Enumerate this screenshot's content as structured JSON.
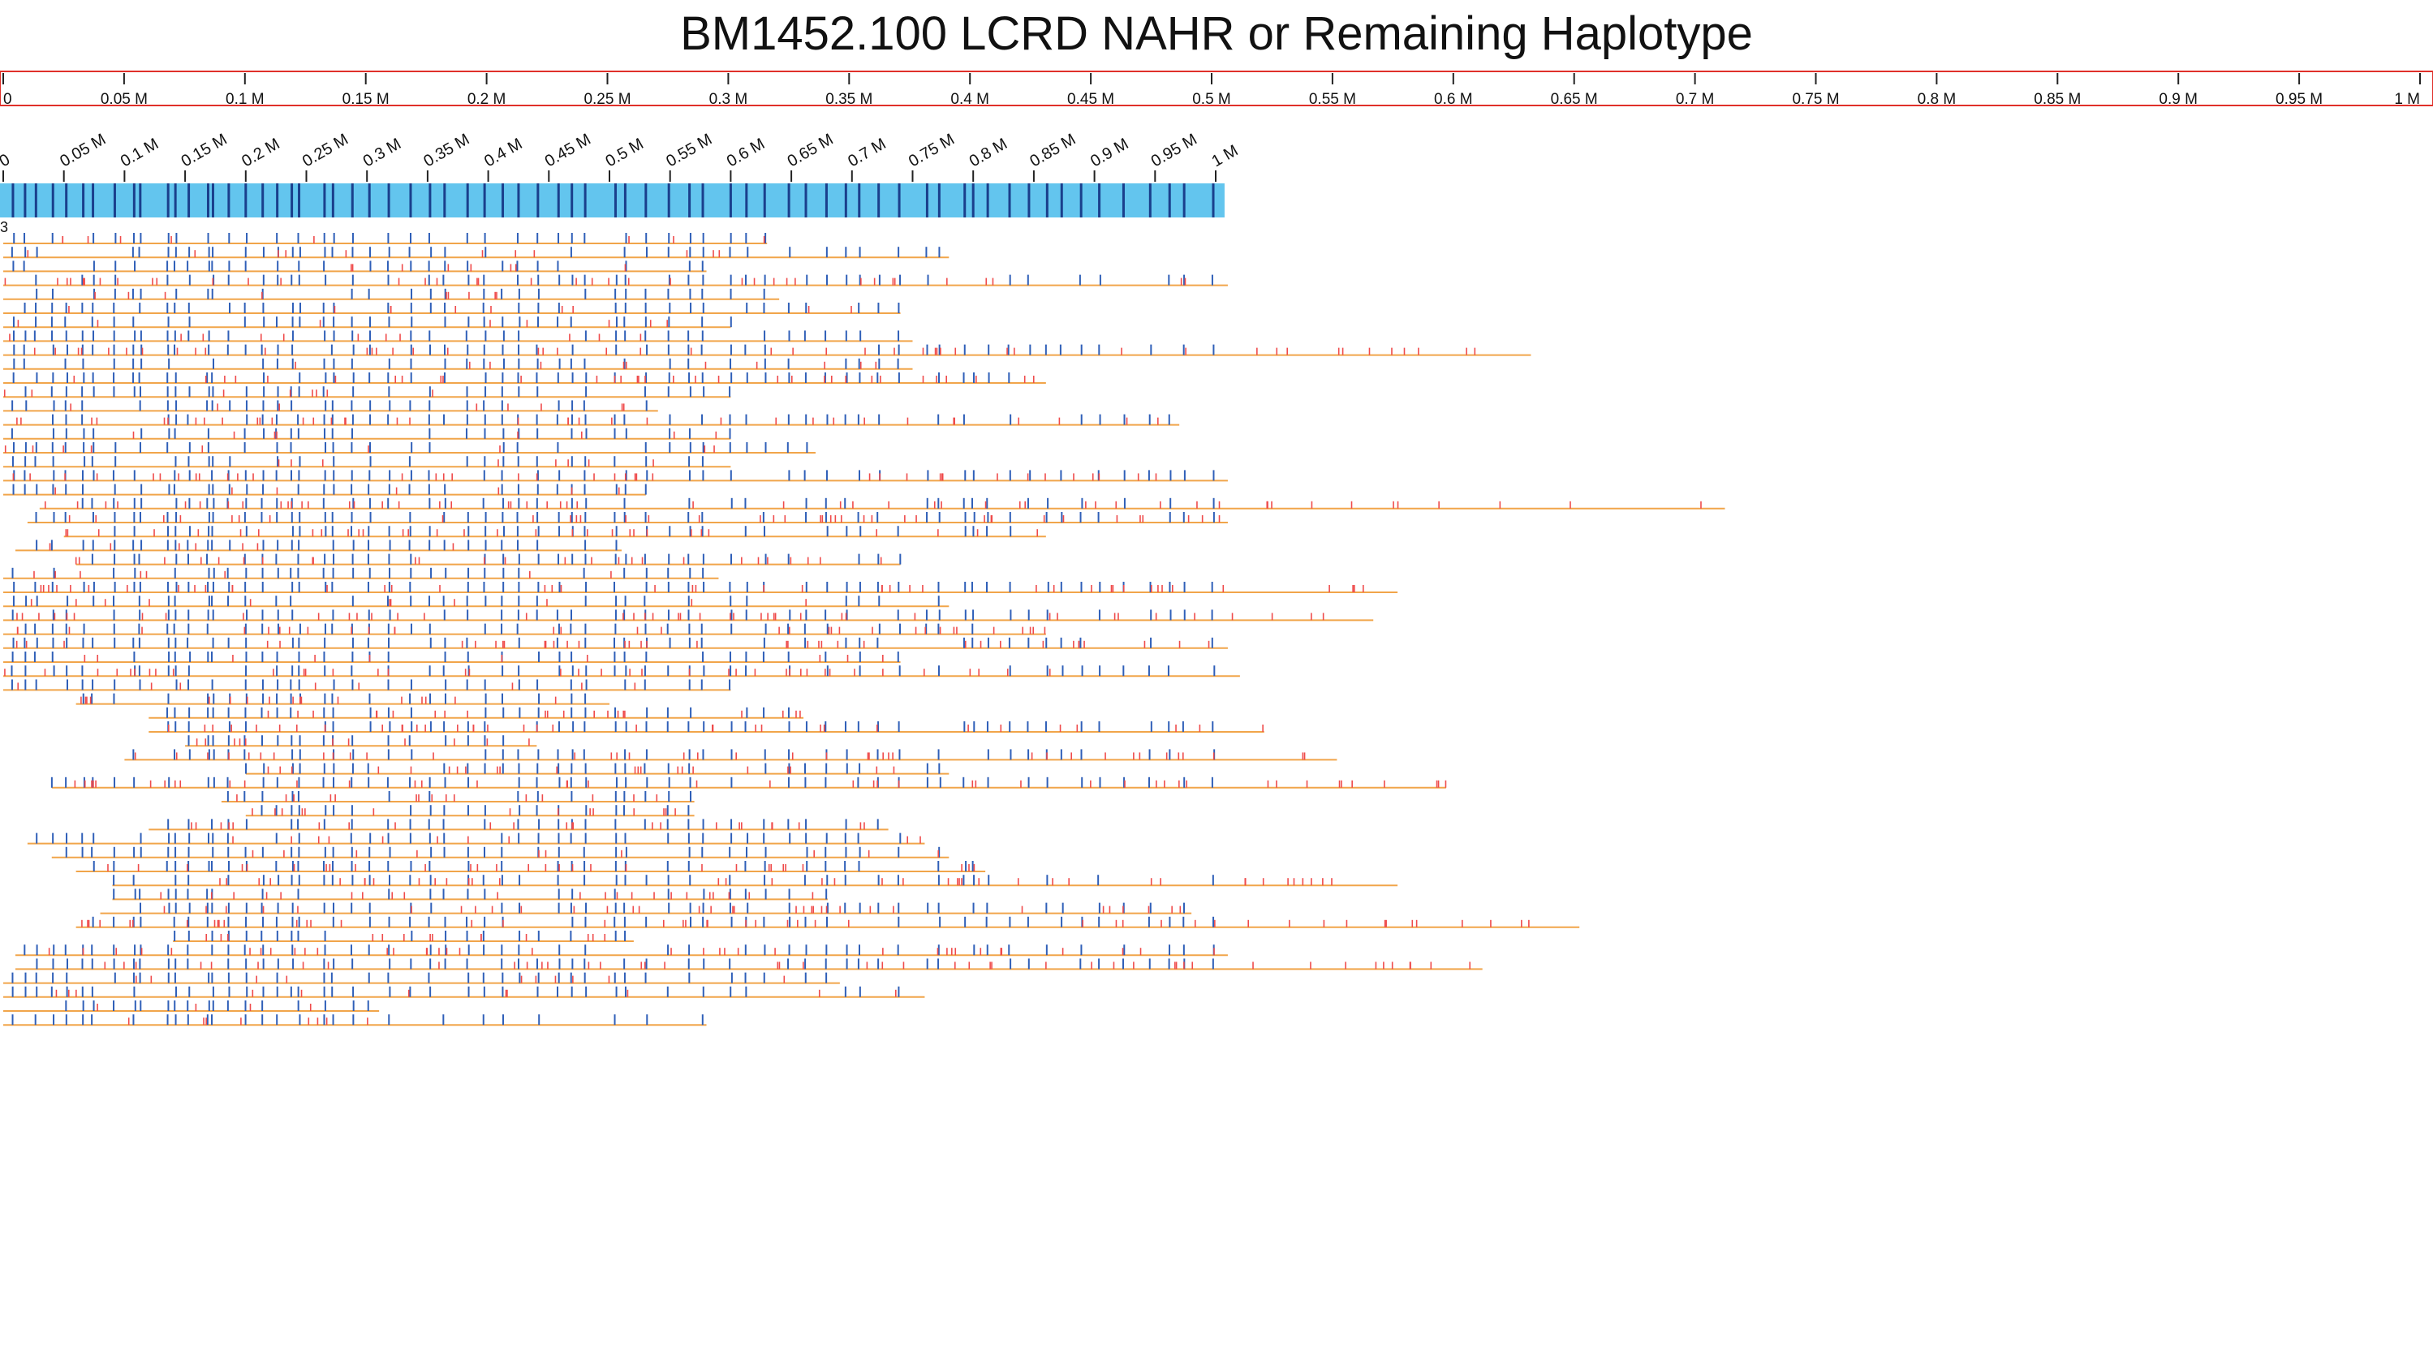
{
  "title": "BM1452.100 LCRD NAHR or Remaining Haplotype",
  "colors": {
    "ruler_border": "#e0302a",
    "contig_fill": "#63c5ee",
    "contig_band": "#1a3f8c",
    "read_line": "#f1a54a",
    "label_match": "#2f5fb8",
    "label_nomatch": "#ef4b4b"
  },
  "reference_ruler": {
    "ticks": [
      "0",
      "0.05 M",
      "0.1 M",
      "0.15 M",
      "0.2 M",
      "0.25 M",
      "0.3 M",
      "0.35 M",
      "0.4 M",
      "0.45 M",
      "0.5 M",
      "0.55 M",
      "0.6 M",
      "0.65 M",
      "0.7 M",
      "0.75 M",
      "0.8 M",
      "0.85 M",
      "0.9 M",
      "0.95 M",
      "1 M"
    ]
  },
  "contig": {
    "length_mb": 1.01,
    "ticks": [
      "0",
      "0.05 M",
      "0.1 M",
      "0.15 M",
      "0.2 M",
      "0.25 M",
      "0.3 M",
      "0.35 M",
      "0.4 M",
      "0.45 M",
      "0.5 M",
      "0.55 M",
      "0.6 M",
      "0.65 M",
      "0.7 M",
      "0.75 M",
      "0.8 M",
      "0.85 M",
      "0.9 M",
      "0.95 M",
      "1 M"
    ],
    "label_sites_mb": [
      0.008,
      0.018,
      0.027,
      0.041,
      0.052,
      0.066,
      0.074,
      0.092,
      0.108,
      0.113,
      0.136,
      0.142,
      0.153,
      0.169,
      0.173,
      0.186,
      0.2,
      0.214,
      0.226,
      0.238,
      0.244,
      0.265,
      0.272,
      0.288,
      0.302,
      0.318,
      0.336,
      0.352,
      0.364,
      0.383,
      0.397,
      0.412,
      0.425,
      0.441,
      0.458,
      0.469,
      0.48,
      0.505,
      0.513,
      0.53,
      0.549,
      0.566,
      0.577,
      0.6,
      0.613,
      0.628,
      0.648,
      0.662,
      0.679,
      0.695,
      0.706,
      0.722,
      0.739,
      0.762,
      0.772,
      0.793,
      0.8,
      0.812,
      0.83,
      0.846,
      0.861,
      0.873,
      0.889,
      0.904,
      0.924,
      0.946,
      0.962,
      0.974,
      0.998
    ]
  },
  "read_group_label": "3",
  "reads": [
    {
      "start_mb": 0.0,
      "end_mb": 0.63
    },
    {
      "start_mb": 0.0,
      "end_mb": 0.78
    },
    {
      "start_mb": 0.0,
      "end_mb": 0.58
    },
    {
      "start_mb": 0.0,
      "end_mb": 1.01
    },
    {
      "start_mb": 0.0,
      "end_mb": 0.64
    },
    {
      "start_mb": 0.0,
      "end_mb": 0.74
    },
    {
      "start_mb": 0.0,
      "end_mb": 0.6
    },
    {
      "start_mb": 0.0,
      "end_mb": 0.75
    },
    {
      "start_mb": 0.0,
      "end_mb": 1.26
    },
    {
      "start_mb": 0.0,
      "end_mb": 0.75
    },
    {
      "start_mb": 0.0,
      "end_mb": 0.86
    },
    {
      "start_mb": 0.0,
      "end_mb": 0.6
    },
    {
      "start_mb": 0.0,
      "end_mb": 0.54
    },
    {
      "start_mb": 0.0,
      "end_mb": 0.97
    },
    {
      "start_mb": 0.0,
      "end_mb": 0.6
    },
    {
      "start_mb": 0.0,
      "end_mb": 0.67
    },
    {
      "start_mb": 0.0,
      "end_mb": 0.6
    },
    {
      "start_mb": 0.0,
      "end_mb": 1.01
    },
    {
      "start_mb": 0.0,
      "end_mb": 0.53
    },
    {
      "start_mb": 0.03,
      "end_mb": 1.42
    },
    {
      "start_mb": 0.02,
      "end_mb": 1.01
    },
    {
      "start_mb": 0.05,
      "end_mb": 0.86
    },
    {
      "start_mb": 0.01,
      "end_mb": 0.51
    },
    {
      "start_mb": 0.06,
      "end_mb": 0.74
    },
    {
      "start_mb": 0.0,
      "end_mb": 0.59
    },
    {
      "start_mb": 0.0,
      "end_mb": 1.15
    },
    {
      "start_mb": 0.0,
      "end_mb": 0.78
    },
    {
      "start_mb": 0.0,
      "end_mb": 1.13
    },
    {
      "start_mb": 0.0,
      "end_mb": 0.86
    },
    {
      "start_mb": 0.0,
      "end_mb": 1.01
    },
    {
      "start_mb": 0.0,
      "end_mb": 0.74
    },
    {
      "start_mb": 0.0,
      "end_mb": 1.02
    },
    {
      "start_mb": 0.0,
      "end_mb": 0.6
    },
    {
      "start_mb": 0.06,
      "end_mb": 0.5
    },
    {
      "start_mb": 0.12,
      "end_mb": 0.66
    },
    {
      "start_mb": 0.12,
      "end_mb": 1.04
    },
    {
      "start_mb": 0.15,
      "end_mb": 0.44
    },
    {
      "start_mb": 0.1,
      "end_mb": 1.1
    },
    {
      "start_mb": 0.2,
      "end_mb": 0.78
    },
    {
      "start_mb": 0.04,
      "end_mb": 1.19
    },
    {
      "start_mb": 0.18,
      "end_mb": 0.57
    },
    {
      "start_mb": 0.2,
      "end_mb": 0.57
    },
    {
      "start_mb": 0.12,
      "end_mb": 0.73
    },
    {
      "start_mb": 0.02,
      "end_mb": 0.76
    },
    {
      "start_mb": 0.04,
      "end_mb": 0.78
    },
    {
      "start_mb": 0.06,
      "end_mb": 0.81
    },
    {
      "start_mb": 0.09,
      "end_mb": 1.15
    },
    {
      "start_mb": 0.09,
      "end_mb": 0.68
    },
    {
      "start_mb": 0.08,
      "end_mb": 0.98
    },
    {
      "start_mb": 0.06,
      "end_mb": 1.3
    },
    {
      "start_mb": 0.14,
      "end_mb": 0.52
    },
    {
      "start_mb": 0.01,
      "end_mb": 1.01
    },
    {
      "start_mb": 0.01,
      "end_mb": 1.22
    },
    {
      "start_mb": 0.0,
      "end_mb": 0.69
    },
    {
      "start_mb": 0.0,
      "end_mb": 0.76
    },
    {
      "start_mb": 0.0,
      "end_mb": 0.31
    },
    {
      "start_mb": 0.0,
      "end_mb": 0.58
    }
  ]
}
